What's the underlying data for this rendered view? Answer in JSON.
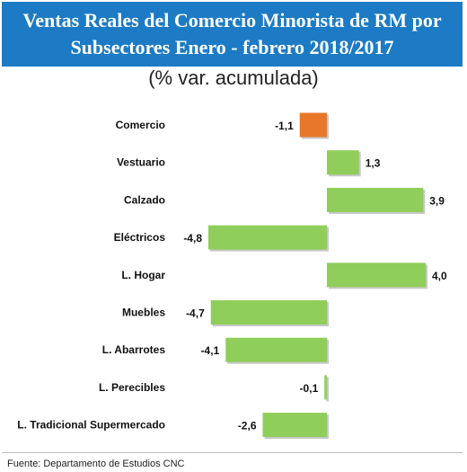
{
  "header": {
    "title_line1": "Ventas  Reales del Comercio Minorista de RM por",
    "title_line2": "Subsectores Enero - febrero 2018/2017",
    "subtitle": "(% var. acumulada)"
  },
  "footer": {
    "source": "Fuente: Departamento de Estudios CNC"
  },
  "colors": {
    "title_bg": "#1c7bc4",
    "bar_default": "#8fce5a",
    "bar_highlight": "#e8772b"
  },
  "chart_data": {
    "type": "bar",
    "orientation": "horizontal",
    "categories": [
      "Comercio",
      "Vestuario",
      "Calzado",
      "Eléctricos",
      "L. Hogar",
      "Muebles",
      "L. Abarrotes",
      "L. Perecibles",
      "L. Tradicional Supermercado"
    ],
    "values": [
      -1.1,
      1.3,
      3.9,
      -4.8,
      4.0,
      -4.7,
      -4.1,
      -0.1,
      -2.6
    ],
    "value_labels": [
      "-1,1",
      "1,3",
      "3,9",
      "-4,8",
      "4,0",
      "-4,7",
      "-4,1",
      "-0,1",
      "-2,6"
    ],
    "highlight_index": 0,
    "xlim": [
      -6,
      6
    ]
  }
}
